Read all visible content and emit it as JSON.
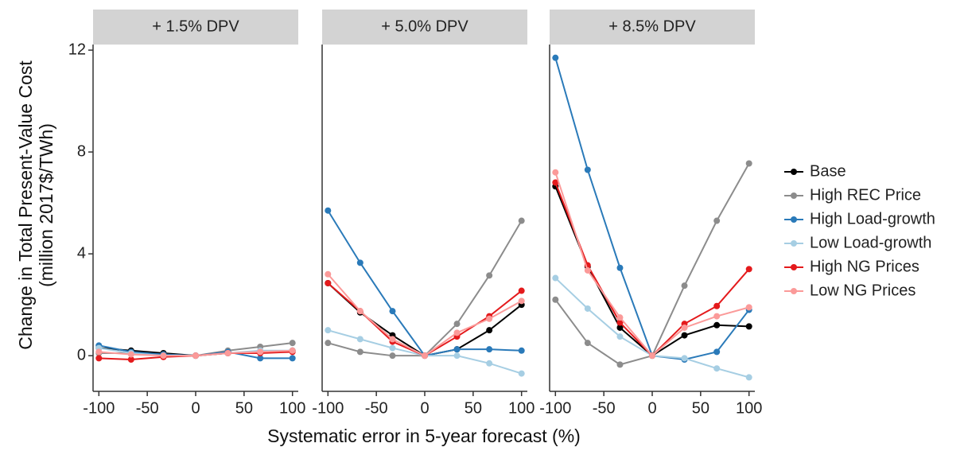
{
  "chart_data": [
    {
      "type": "line",
      "title": "+ 1.5% DPV",
      "ylabel": [
        "Change in Total Present-Value Cost",
        "(million 2017$/TWh)"
      ],
      "x": [
        -100,
        -66.7,
        -33.3,
        0,
        33.3,
        66.7,
        100
      ],
      "xlim": [
        -106,
        106
      ],
      "ylim": [
        -1.4,
        12.22
      ],
      "xticks": [
        -100,
        -50,
        0,
        50,
        100
      ],
      "yticks": [
        0,
        4,
        8,
        12
      ],
      "legend": "right",
      "series": [
        {
          "name": "Base",
          "color": "#000000",
          "values": [
            0.3,
            0.2,
            0.1,
            0,
            0.1,
            0.15,
            0.2
          ]
        },
        {
          "name": "High REC Price",
          "color": "#8c8c8c",
          "values": [
            0.1,
            0.1,
            0.05,
            0,
            0.2,
            0.35,
            0.5
          ]
        },
        {
          "name": "High Load-growth",
          "color": "#2a7ab9",
          "values": [
            0.4,
            0.15,
            0.05,
            0,
            0.15,
            -0.1,
            -0.1
          ]
        },
        {
          "name": "Low Load-growth",
          "color": "#a6cee3",
          "values": [
            0.3,
            0.1,
            0.0,
            0,
            0.1,
            0.2,
            0.2
          ]
        },
        {
          "name": "High NG Prices",
          "color": "#e41a1c",
          "values": [
            -0.1,
            -0.15,
            -0.05,
            0,
            0.1,
            0.1,
            0.15
          ]
        },
        {
          "name": "Low NG Prices",
          "color": "#fb9a99",
          "values": [
            0.15,
            0.05,
            0.0,
            0,
            0.1,
            0.15,
            0.2
          ]
        }
      ]
    },
    {
      "type": "line",
      "title": "+ 5.0% DPV",
      "xlabel": "Systematic error in 5-year forecast (%)",
      "x": [
        -100,
        -66.7,
        -33.3,
        0,
        33.3,
        66.7,
        100
      ],
      "xlim": [
        -106,
        106
      ],
      "ylim": [
        -1.4,
        12.22
      ],
      "xticks": [
        -100,
        -50,
        0,
        50,
        100
      ],
      "series": [
        {
          "name": "Base",
          "color": "#000000",
          "values": [
            2.85,
            1.7,
            0.8,
            0,
            0.25,
            1.0,
            2.0
          ]
        },
        {
          "name": "High REC Price",
          "color": "#8c8c8c",
          "values": [
            0.5,
            0.15,
            0.0,
            0,
            1.25,
            3.15,
            5.3
          ]
        },
        {
          "name": "High Load-growth",
          "color": "#2a7ab9",
          "values": [
            5.7,
            3.65,
            1.75,
            0,
            0.25,
            0.25,
            0.2
          ]
        },
        {
          "name": "Low Load-growth",
          "color": "#a6cee3",
          "values": [
            1.0,
            0.65,
            0.3,
            0,
            0.0,
            -0.3,
            -0.7
          ]
        },
        {
          "name": "High NG Prices",
          "color": "#e41a1c",
          "values": [
            2.85,
            1.75,
            0.55,
            0,
            0.75,
            1.55,
            2.55
          ]
        },
        {
          "name": "Low NG Prices",
          "color": "#fb9a99",
          "values": [
            3.2,
            1.75,
            0.65,
            0,
            0.9,
            1.45,
            2.15
          ]
        }
      ]
    },
    {
      "type": "line",
      "title": "+ 8.5% DPV",
      "x": [
        -100,
        -66.7,
        -33.3,
        0,
        33.3,
        66.7,
        100
      ],
      "xlim": [
        -106,
        106
      ],
      "ylim": [
        -1.4,
        12.22
      ],
      "xticks": [
        -100,
        -50,
        0,
        50,
        100
      ],
      "series": [
        {
          "name": "Base",
          "color": "#000000",
          "values": [
            6.65,
            3.5,
            1.1,
            0,
            0.8,
            1.2,
            1.15
          ]
        },
        {
          "name": "High REC Price",
          "color": "#8c8c8c",
          "values": [
            2.2,
            0.5,
            -0.35,
            0,
            2.75,
            5.3,
            7.55
          ]
        },
        {
          "name": "High Load-growth",
          "color": "#2a7ab9",
          "values": [
            11.7,
            7.3,
            3.45,
            0,
            -0.15,
            0.15,
            1.8
          ]
        },
        {
          "name": "Low Load-growth",
          "color": "#a6cee3",
          "values": [
            3.05,
            1.85,
            0.75,
            0,
            -0.1,
            -0.5,
            -0.85
          ]
        },
        {
          "name": "High NG Prices",
          "color": "#e41a1c",
          "values": [
            6.8,
            3.55,
            1.3,
            0,
            1.25,
            1.95,
            3.4
          ]
        },
        {
          "name": "Low NG Prices",
          "color": "#fb9a99",
          "values": [
            7.2,
            3.35,
            1.5,
            0,
            1.1,
            1.55,
            1.9
          ]
        }
      ]
    }
  ]
}
